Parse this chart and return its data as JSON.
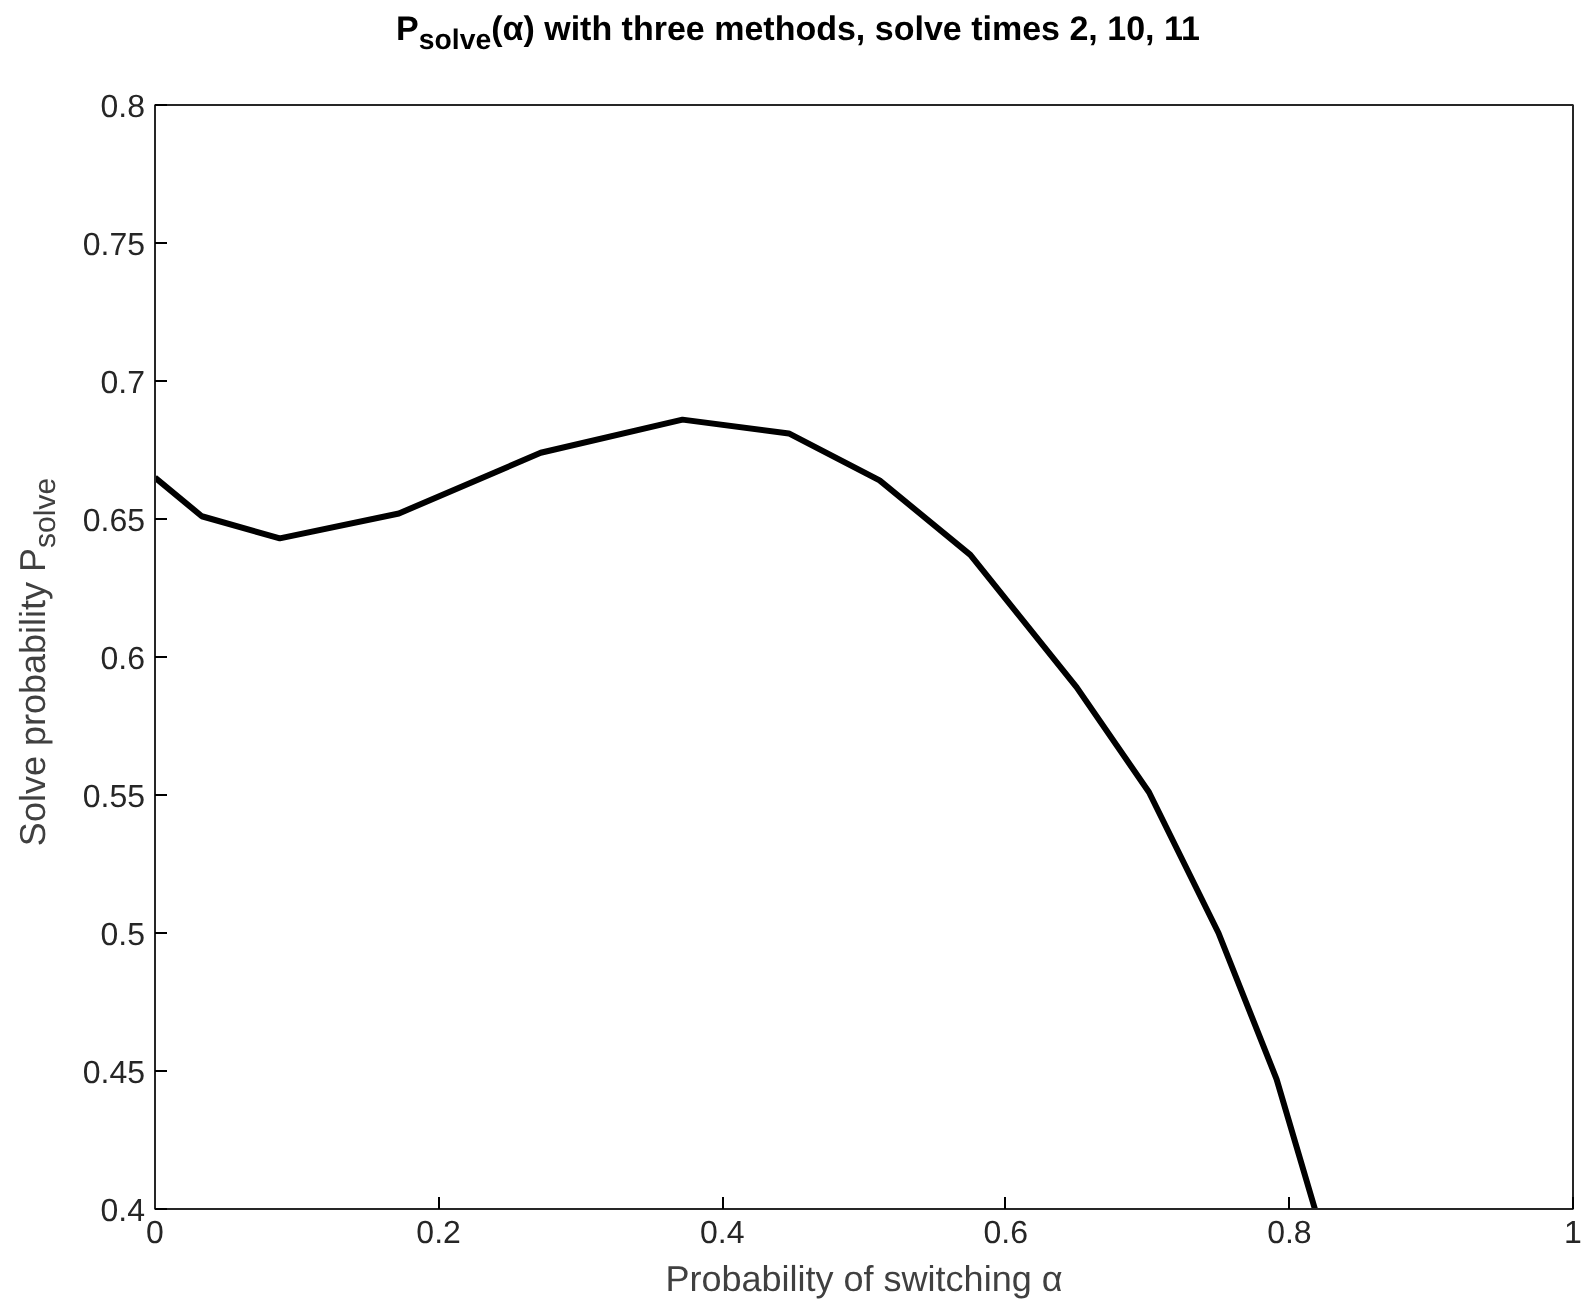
{
  "chart_data": {
    "type": "line",
    "title": "P$_{solve}$(α) with three methods, solve times 2, 10, 11",
    "xlabel": "Probability of switching α",
    "ylabel": "Solve probability P$_{solve}$",
    "x": [
      0,
      0.033,
      0.088,
      0.172,
      0.272,
      0.372,
      0.447,
      0.511,
      0.575,
      0.65,
      0.701,
      0.75,
      0.791,
      0.818
    ],
    "series": [
      {
        "color": "#000000",
        "values": [
          0.665,
          0.651,
          0.643,
          0.652,
          0.674,
          0.686,
          0.681,
          0.664,
          0.637,
          0.589,
          0.551,
          0.5,
          0.447,
          0.4
        ]
      }
    ],
    "xlim": [
      0,
      1
    ],
    "ylim": [
      0.4,
      0.8
    ],
    "xticks": [
      0,
      0.2,
      0.4,
      0.6,
      0.8,
      1
    ],
    "yticks": [
      0.4,
      0.45,
      0.5,
      0.55,
      0.6,
      0.65,
      0.7,
      0.75,
      0.8
    ],
    "grid": false,
    "marker": "none",
    "line_style": "solid"
  }
}
